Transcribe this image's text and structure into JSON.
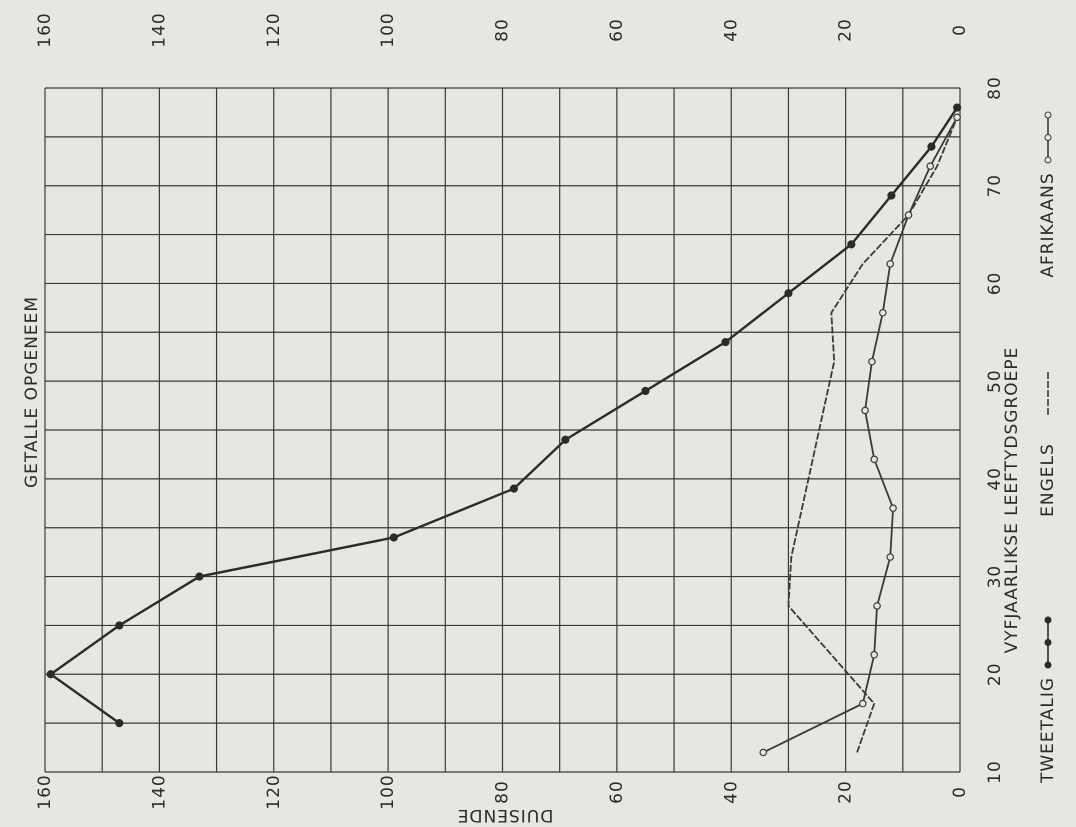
{
  "chart_data": {
    "type": "line",
    "title": "GETALLE OPGENEEM",
    "x_label": "VYFJAARLIKSE LEEFTYDSGROEPE",
    "y_label": "DUISENDE",
    "xlim": [
      10,
      80
    ],
    "ylim": [
      0,
      160
    ],
    "xticks": [
      10,
      20,
      30,
      40,
      50,
      60,
      70,
      80
    ],
    "yticks": [
      0,
      20,
      40,
      60,
      80,
      100,
      120,
      140,
      160
    ],
    "xgrid": [
      10,
      15,
      20,
      25,
      30,
      35,
      40,
      45,
      50,
      55,
      60,
      65,
      70,
      75,
      80
    ],
    "ygrid": [
      0,
      10,
      20,
      30,
      40,
      50,
      60,
      70,
      80,
      90,
      100,
      110,
      120,
      130,
      140,
      150,
      160
    ],
    "series": [
      {
        "name": "TWEETALIG",
        "color": "#2b2b2b",
        "marker": "filled",
        "x": [
          15,
          20,
          25,
          30,
          34,
          39,
          44,
          49,
          54,
          59,
          64,
          69,
          74,
          78
        ],
        "values": [
          147,
          159,
          147,
          133,
          99,
          78,
          69,
          55,
          41,
          30,
          19,
          12,
          5,
          0.5
        ]
      },
      {
        "name": "ENGELS",
        "color": "#3a3a3a",
        "marker": "none",
        "x": [
          12,
          17,
          27,
          32,
          52,
          57,
          62,
          67,
          72,
          77
        ],
        "values": [
          18,
          15,
          30,
          29.5,
          22,
          22.5,
          17,
          9,
          4,
          0.5
        ]
      },
      {
        "name": "AFRIKAANS",
        "color": "#3a3a3a",
        "marker": "open",
        "x": [
          12,
          17,
          22,
          27,
          32,
          37,
          42,
          47,
          52,
          57,
          62,
          67,
          72,
          77
        ],
        "values": [
          34.4,
          17,
          15,
          14.5,
          12.2,
          11.7,
          15,
          16.6,
          15.4,
          13.5,
          12.2,
          9,
          5.2,
          0.5
        ]
      }
    ]
  }
}
